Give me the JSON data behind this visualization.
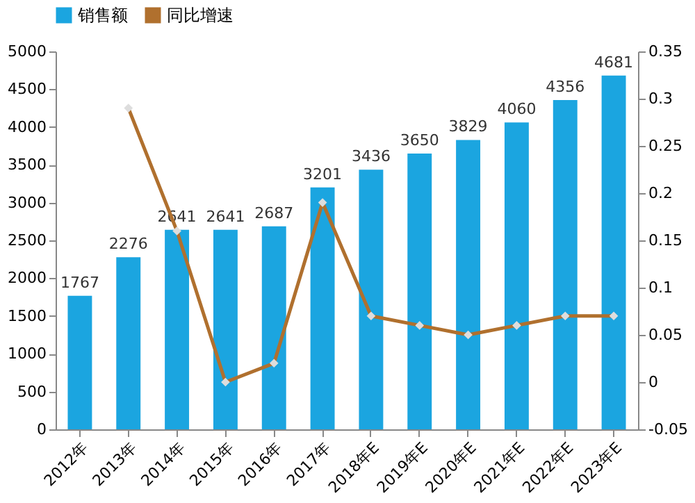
{
  "chart_data": {
    "type": "bar",
    "categories": [
      "2012年",
      "2013年",
      "2014年",
      "2015年",
      "2016年",
      "2017年",
      "2018年E",
      "2019年E",
      "2020年E",
      "2021年E",
      "2022年E",
      "2023年E"
    ],
    "series": [
      {
        "name": "销售额",
        "color": "#1ba5e0",
        "values": [
          1767,
          2276,
          2641,
          2641,
          2687,
          3201,
          3436,
          3650,
          3829,
          4060,
          4356,
          4681
        ],
        "value_labels": [
          "1767",
          "2276",
          "2641",
          "2641",
          "2687",
          "3201",
          "3436",
          "3650",
          "3829",
          "4060",
          "4356",
          "4681"
        ]
      },
      {
        "name": "同比增速",
        "type": "line",
        "axis": "y2",
        "color": "#b0702e",
        "marker": "diamond",
        "values": [
          null,
          0.29,
          0.16,
          0,
          0.02,
          0.19,
          0.07,
          0.06,
          0.05,
          0.06,
          0.07,
          0.07
        ]
      }
    ],
    "ylim": [
      0,
      5000
    ],
    "yticks": [
      0,
      500,
      1000,
      1500,
      2000,
      2500,
      3000,
      3500,
      4000,
      4500,
      5000
    ],
    "y2lim": [
      -0.05,
      0.35
    ],
    "y2ticks": [
      -0.05,
      0,
      0.05,
      0.1,
      0.15,
      0.2,
      0.25,
      0.3,
      0.35
    ],
    "legend": "top",
    "grid": false
  }
}
